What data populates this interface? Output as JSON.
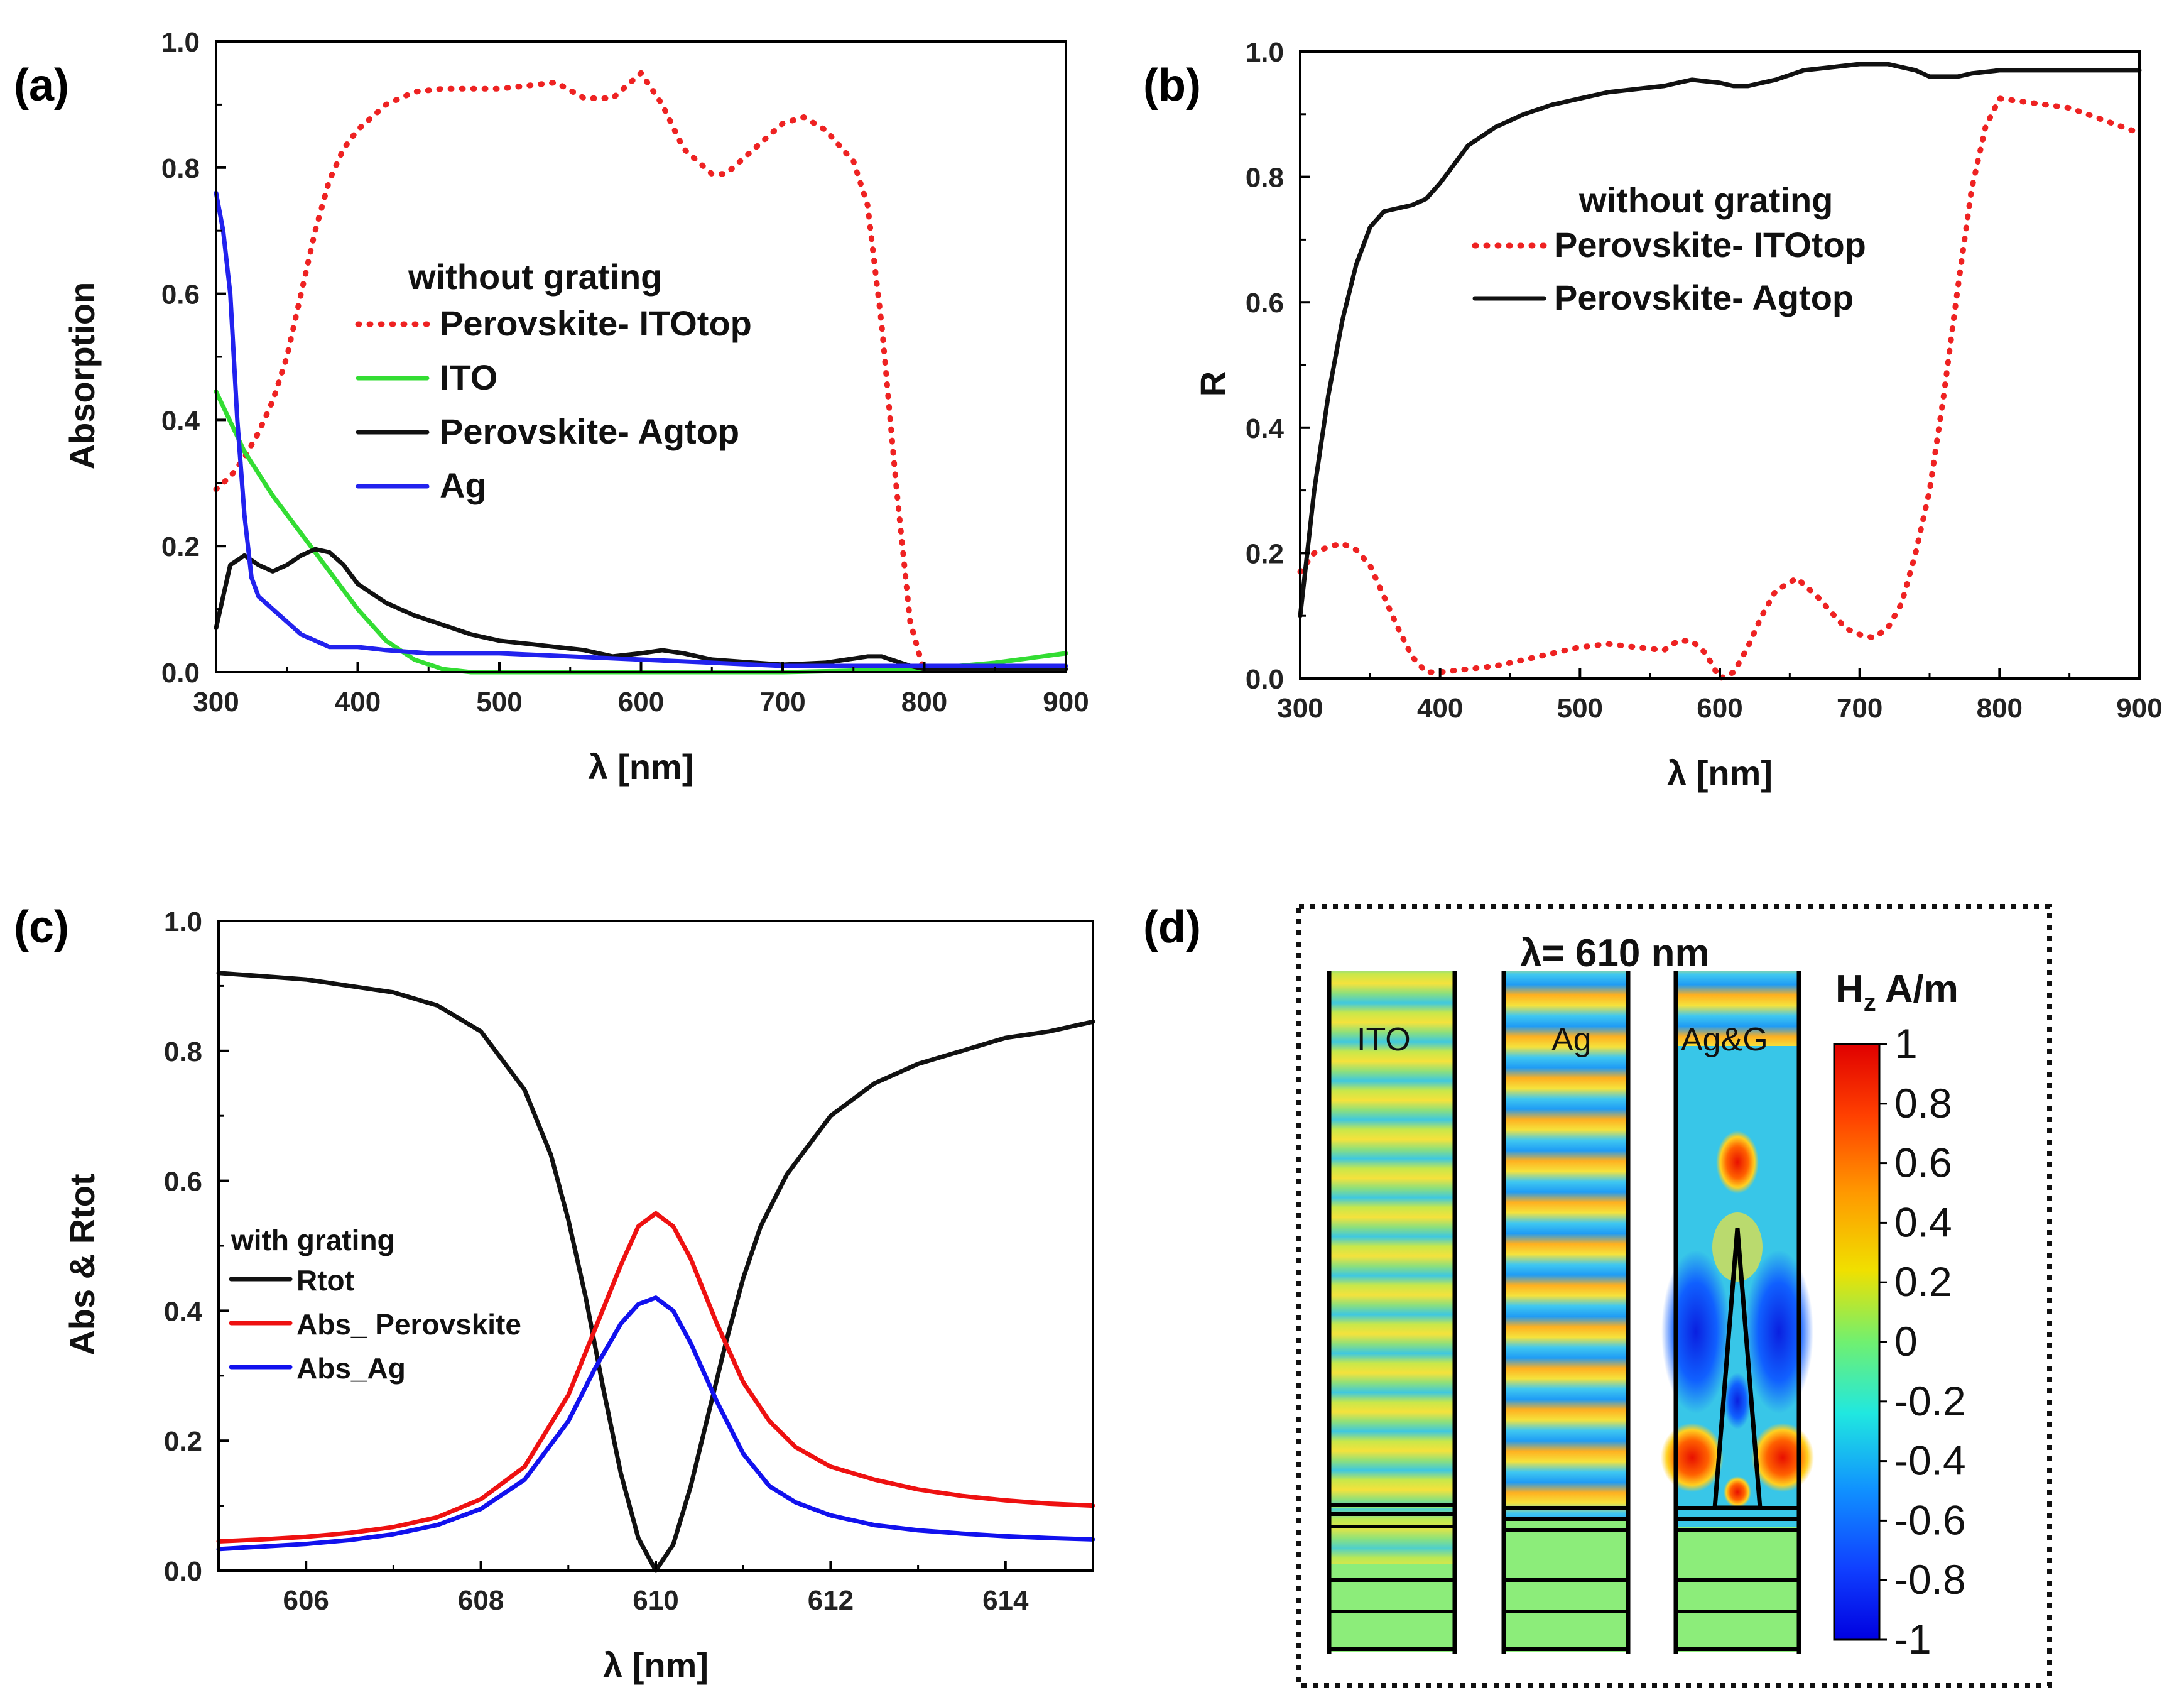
{
  "chart_data": [
    {
      "panel": "(a)",
      "type": "line",
      "xlabel": "λ [nm]",
      "ylabel": "Absorption",
      "xlim": [
        300,
        900
      ],
      "ylim": [
        0,
        1
      ],
      "xticks": [
        300,
        400,
        500,
        600,
        700,
        800,
        900
      ],
      "yticks": [
        0.0,
        0.2,
        0.4,
        0.6,
        0.8,
        1.0
      ],
      "legend_title": "without grating",
      "series": [
        {
          "name": "Perovskite- ITOtop",
          "color": "#ee2222",
          "style": "dotted",
          "x": [
            300,
            310,
            320,
            330,
            340,
            350,
            360,
            370,
            380,
            390,
            400,
            420,
            440,
            460,
            480,
            500,
            520,
            540,
            560,
            580,
            600,
            615,
            630,
            650,
            660,
            680,
            700,
            715,
            730,
            750,
            760,
            770,
            780,
            790,
            800
          ],
          "y": [
            0.29,
            0.31,
            0.34,
            0.38,
            0.43,
            0.5,
            0.6,
            0.7,
            0.78,
            0.83,
            0.86,
            0.9,
            0.92,
            0.925,
            0.925,
            0.925,
            0.93,
            0.935,
            0.91,
            0.91,
            0.95,
            0.9,
            0.83,
            0.79,
            0.79,
            0.83,
            0.87,
            0.88,
            0.86,
            0.81,
            0.74,
            0.55,
            0.3,
            0.08,
            0.0
          ]
        },
        {
          "name": "ITO",
          "color": "#33dd33",
          "style": "solid",
          "x": [
            300,
            320,
            340,
            360,
            380,
            400,
            420,
            440,
            460,
            480,
            500,
            600,
            700,
            800,
            850,
            900
          ],
          "y": [
            0.445,
            0.35,
            0.28,
            0.22,
            0.16,
            0.1,
            0.05,
            0.02,
            0.005,
            0.0,
            0.0,
            0.0,
            0.0,
            0.005,
            0.015,
            0.03
          ]
        },
        {
          "name": "Perovskite- Agtop",
          "color": "#111111",
          "style": "solid",
          "x": [
            300,
            310,
            320,
            330,
            340,
            350,
            360,
            370,
            380,
            390,
            400,
            420,
            440,
            460,
            480,
            500,
            520,
            540,
            560,
            580,
            600,
            615,
            630,
            650,
            680,
            700,
            730,
            760,
            770,
            790,
            800,
            900
          ],
          "y": [
            0.07,
            0.17,
            0.185,
            0.17,
            0.16,
            0.17,
            0.185,
            0.195,
            0.19,
            0.17,
            0.14,
            0.11,
            0.09,
            0.075,
            0.06,
            0.05,
            0.045,
            0.04,
            0.035,
            0.025,
            0.03,
            0.035,
            0.03,
            0.02,
            0.015,
            0.012,
            0.015,
            0.025,
            0.025,
            0.01,
            0.005,
            0.005
          ]
        },
        {
          "name": "Ag",
          "color": "#2222ee",
          "style": "solid",
          "x": [
            300,
            305,
            310,
            315,
            320,
            325,
            330,
            340,
            350,
            360,
            370,
            380,
            400,
            420,
            450,
            500,
            550,
            600,
            650,
            700,
            800,
            900
          ],
          "y": [
            0.76,
            0.7,
            0.6,
            0.4,
            0.25,
            0.15,
            0.12,
            0.1,
            0.08,
            0.06,
            0.05,
            0.04,
            0.04,
            0.035,
            0.03,
            0.03,
            0.025,
            0.02,
            0.015,
            0.01,
            0.01,
            0.01
          ]
        }
      ]
    },
    {
      "panel": "(b)",
      "type": "line",
      "xlabel": "λ [nm]",
      "ylabel": "R",
      "xlim": [
        300,
        900
      ],
      "ylim": [
        0,
        1
      ],
      "xticks": [
        300,
        400,
        500,
        600,
        700,
        800,
        900
      ],
      "yticks": [
        0.0,
        0.2,
        0.4,
        0.6,
        0.8,
        1.0
      ],
      "legend_title": "without grating",
      "series": [
        {
          "name": "Perovskite- ITOtop",
          "color": "#ee2222",
          "style": "dotted",
          "x": [
            300,
            310,
            320,
            330,
            340,
            350,
            360,
            370,
            380,
            390,
            400,
            420,
            440,
            460,
            480,
            500,
            520,
            540,
            560,
            570,
            580,
            590,
            600,
            610,
            620,
            630,
            640,
            655,
            670,
            690,
            700,
            710,
            720,
            730,
            740,
            750,
            760,
            770,
            780,
            790,
            800,
            850,
            900
          ],
          "y": [
            0.17,
            0.2,
            0.21,
            0.215,
            0.205,
            0.18,
            0.13,
            0.08,
            0.035,
            0.01,
            0.01,
            0.015,
            0.02,
            0.03,
            0.04,
            0.05,
            0.055,
            0.05,
            0.045,
            0.06,
            0.06,
            0.04,
            0.0,
            0.01,
            0.05,
            0.1,
            0.14,
            0.16,
            0.13,
            0.08,
            0.07,
            0.065,
            0.08,
            0.12,
            0.2,
            0.3,
            0.45,
            0.62,
            0.78,
            0.88,
            0.925,
            0.91,
            0.87
          ]
        },
        {
          "name": "Perovskite- Agtop",
          "color": "#111111",
          "style": "solid",
          "x": [
            300,
            310,
            320,
            330,
            340,
            350,
            360,
            370,
            380,
            390,
            400,
            420,
            440,
            460,
            480,
            500,
            520,
            540,
            560,
            580,
            600,
            610,
            620,
            640,
            660,
            680,
            700,
            720,
            740,
            750,
            760,
            770,
            780,
            800,
            900
          ],
          "y": [
            0.1,
            0.3,
            0.45,
            0.57,
            0.66,
            0.72,
            0.745,
            0.75,
            0.755,
            0.765,
            0.79,
            0.85,
            0.88,
            0.9,
            0.915,
            0.925,
            0.935,
            0.94,
            0.945,
            0.955,
            0.95,
            0.945,
            0.945,
            0.955,
            0.97,
            0.975,
            0.98,
            0.98,
            0.97,
            0.96,
            0.96,
            0.96,
            0.965,
            0.97,
            0.97
          ]
        }
      ]
    },
    {
      "panel": "(c)",
      "type": "line",
      "xlabel": "λ [nm]",
      "ylabel": "Abs & Rtot",
      "xlim": [
        605,
        615
      ],
      "ylim": [
        0,
        1
      ],
      "xticks": [
        606,
        608,
        610,
        612,
        614
      ],
      "yticks": [
        0.0,
        0.2,
        0.4,
        0.6,
        0.8,
        1.0
      ],
      "legend_title": "with grating",
      "series": [
        {
          "name": "Rtot",
          "color": "#111111",
          "style": "solid",
          "x": [
            605,
            605.5,
            606,
            606.5,
            607,
            607.5,
            608,
            608.5,
            608.8,
            609,
            609.2,
            609.4,
            609.6,
            609.8,
            610,
            610.2,
            610.4,
            610.6,
            610.8,
            611,
            611.2,
            611.5,
            612,
            612.5,
            613,
            613.5,
            614,
            614.5,
            615
          ],
          "y": [
            0.92,
            0.915,
            0.91,
            0.9,
            0.89,
            0.87,
            0.83,
            0.74,
            0.64,
            0.54,
            0.42,
            0.28,
            0.15,
            0.05,
            0.0,
            0.04,
            0.13,
            0.24,
            0.35,
            0.45,
            0.53,
            0.61,
            0.7,
            0.75,
            0.78,
            0.8,
            0.82,
            0.83,
            0.845
          ]
        },
        {
          "name": "Abs_ Perovskite",
          "color": "#ee1111",
          "style": "solid",
          "x": [
            605,
            605.5,
            606,
            606.5,
            607,
            607.5,
            608,
            608.5,
            609,
            609.3,
            609.6,
            609.8,
            610,
            610.2,
            610.4,
            610.7,
            611,
            611.3,
            611.6,
            612,
            612.5,
            613,
            613.5,
            614,
            614.5,
            615
          ],
          "y": [
            0.045,
            0.048,
            0.052,
            0.058,
            0.067,
            0.082,
            0.11,
            0.16,
            0.27,
            0.37,
            0.47,
            0.53,
            0.55,
            0.53,
            0.48,
            0.38,
            0.29,
            0.23,
            0.19,
            0.16,
            0.14,
            0.125,
            0.115,
            0.108,
            0.103,
            0.1
          ]
        },
        {
          "name": "Abs_Ag",
          "color": "#1111ee",
          "style": "solid",
          "x": [
            605,
            605.5,
            606,
            606.5,
            607,
            607.5,
            608,
            608.5,
            609,
            609.3,
            609.6,
            609.8,
            610,
            610.2,
            610.4,
            610.7,
            611,
            611.3,
            611.6,
            612,
            612.5,
            613,
            613.5,
            614,
            614.5,
            615
          ],
          "y": [
            0.033,
            0.037,
            0.041,
            0.047,
            0.056,
            0.07,
            0.095,
            0.14,
            0.23,
            0.31,
            0.38,
            0.41,
            0.42,
            0.4,
            0.35,
            0.26,
            0.18,
            0.13,
            0.105,
            0.085,
            0.07,
            0.062,
            0.057,
            0.053,
            0.05,
            0.048
          ]
        }
      ]
    },
    {
      "panel": "(d)",
      "type": "heatmap",
      "title": "λ= 610 nm",
      "maps": [
        "ITO",
        "Ag",
        "Ag&G"
      ],
      "colorbar_label": "Hz A/m",
      "colorbar_label_main": "H",
      "colorbar_label_sub": "z",
      "colorbar_label_unit": "A/m",
      "colorbar_range": [
        -1,
        1
      ],
      "colorbar_ticks": [
        "1",
        "0.8",
        "0.6",
        "0.4",
        "0.2",
        "0",
        "-0.2",
        "-0.4",
        "-0.6",
        "-0.8",
        "-1"
      ]
    }
  ]
}
